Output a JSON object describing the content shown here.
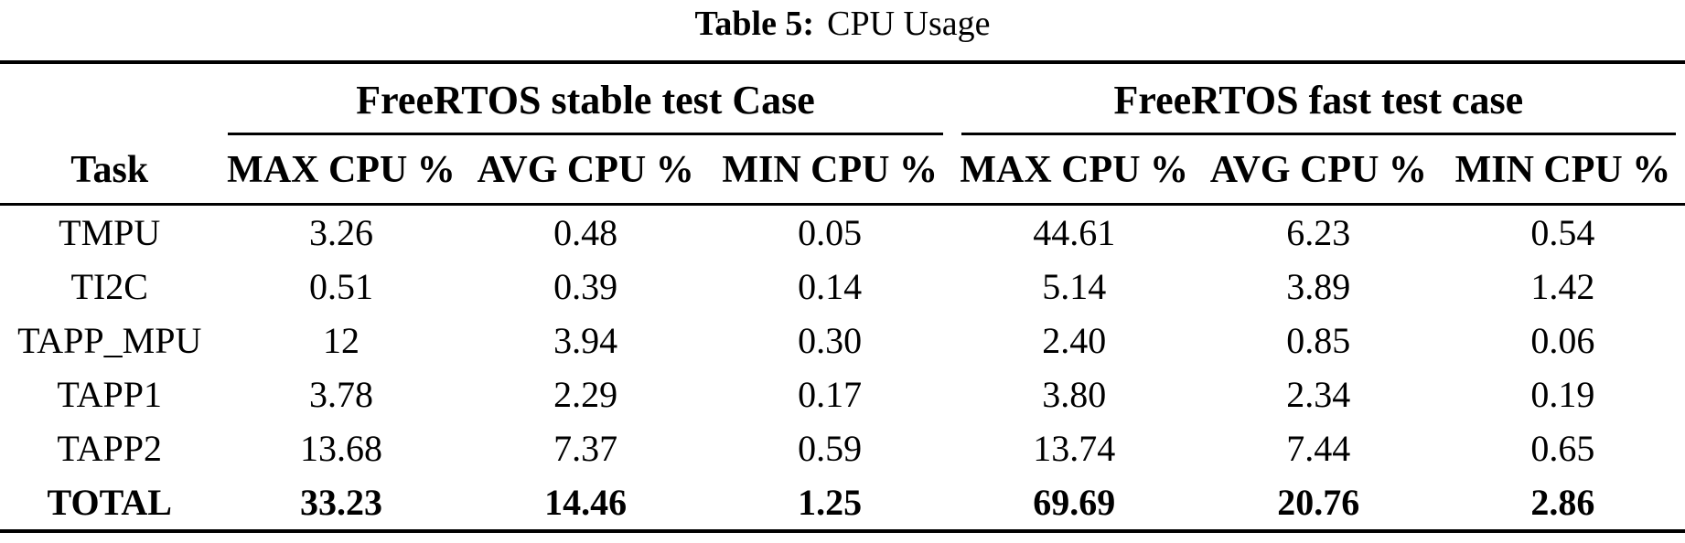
{
  "caption": {
    "label": "Table 5:",
    "text": "CPU Usage"
  },
  "table": {
    "task_header": "Task",
    "groups": [
      {
        "label": "FreeRTOS stable test Case",
        "columns": [
          "MAX CPU %",
          "AVG CPU %",
          "MIN CPU %"
        ]
      },
      {
        "label": "FreeRTOS fast test case",
        "columns": [
          "MAX CPU %",
          "AVG CPU %",
          "MIN CPU %"
        ]
      }
    ],
    "rows": [
      {
        "task": "TMPU",
        "stable": [
          "3.26",
          "0.48",
          "0.05"
        ],
        "fast": [
          "44.61",
          "6.23",
          "0.54"
        ]
      },
      {
        "task": "TI2C",
        "stable": [
          "0.51",
          "0.39",
          "0.14"
        ],
        "fast": [
          "5.14",
          "3.89",
          "1.42"
        ]
      },
      {
        "task": "TAPP_MPU",
        "stable": [
          "12",
          "3.94",
          "0.30"
        ],
        "fast": [
          "2.40",
          "0.85",
          "0.06"
        ]
      },
      {
        "task": "TAPP1",
        "stable": [
          "3.78",
          "2.29",
          "0.17"
        ],
        "fast": [
          "3.80",
          "2.34",
          "0.19"
        ]
      },
      {
        "task": "TAPP2",
        "stable": [
          "13.68",
          "7.37",
          "0.59"
        ],
        "fast": [
          "13.74",
          "7.44",
          "0.65"
        ]
      },
      {
        "task": "TOTAL",
        "stable": [
          "33.23",
          "14.46",
          "1.25"
        ],
        "fast": [
          "69.69",
          "20.76",
          "2.86"
        ]
      }
    ],
    "colors": {
      "text": "#000000",
      "rule": "#000000",
      "background": "#ffffff"
    }
  }
}
